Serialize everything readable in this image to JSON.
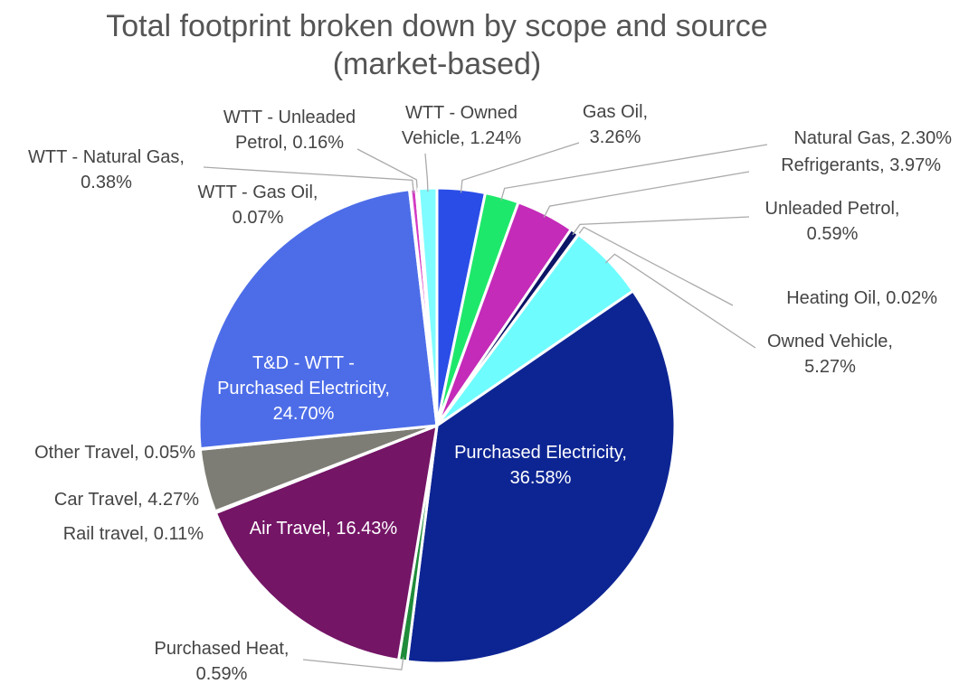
{
  "chart_data": {
    "type": "pie",
    "title": "Total footprint broken down by scope and source (market-based)",
    "categories": [
      "Gas Oil,",
      "Natural Gas,",
      "Refrigerants,",
      "Unleaded Petrol,",
      "Heating Oil,",
      "Owned Vehicle,",
      "Purchased Electricity,",
      "Purchased Heat,",
      "Air Travel,",
      "Rail travel,",
      "Car Travel,",
      "Other Travel,",
      "T&D - WTT - Purchased Electricity,",
      "WTT - Gas Oil,",
      "WTT - Natural Gas,",
      "WTT - Unleaded Petrol,",
      "WTT - Owned Vehicle,"
    ],
    "values": [
      3.26,
      2.3,
      3.97,
      0.59,
      0.02,
      5.27,
      36.58,
      0.59,
      16.43,
      0.11,
      4.27,
      0.05,
      24.7,
      0.07,
      0.38,
      0.16,
      1.24
    ],
    "value_labels": [
      "3.26%",
      "2.30%",
      "3.97%",
      "0.59%",
      "0.02%",
      "5.27%",
      "36.58%",
      "0.59%",
      "16.43%",
      "0.11%",
      "4.27%",
      "0.05%",
      "24.70%",
      "0.07%",
      "0.38%",
      "0.16%",
      "1.24%"
    ],
    "colors": [
      "#2a4de8",
      "#1ee86b",
      "#c42bb8",
      "#0c1466",
      "#5a2a9a",
      "#6ffcff",
      "#0d2593",
      "#1e8c3a",
      "#741566",
      "#9a9a9a",
      "#7d7d75",
      "#b0b0b0",
      "#4d6de8",
      "#3050e0",
      "#d43bc4",
      "#2f2fa0",
      "#7ffcff"
    ]
  }
}
